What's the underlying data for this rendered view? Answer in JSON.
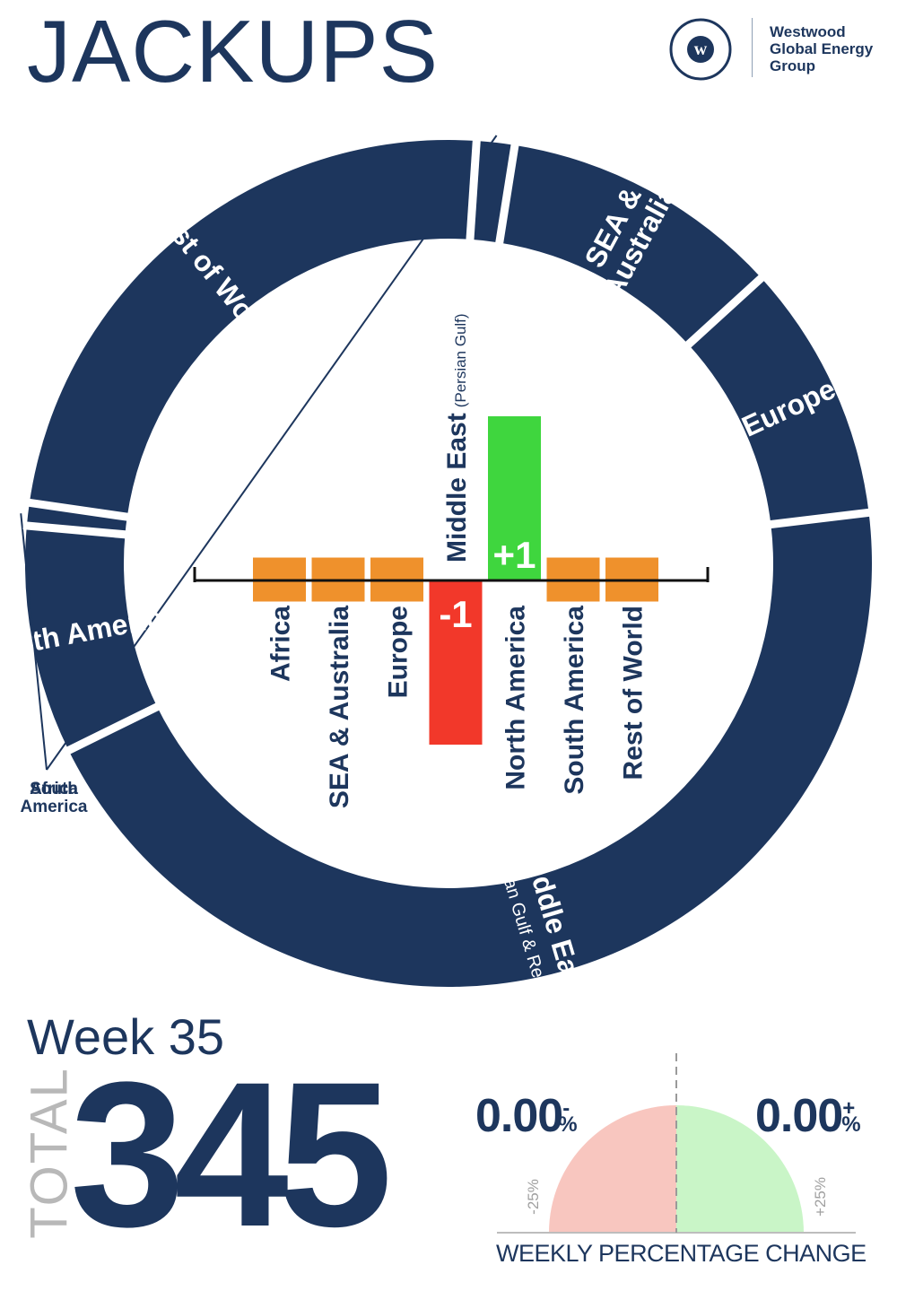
{
  "page": {
    "title": "JACKUPS",
    "brand": {
      "name_lines": [
        "Westwood",
        "Global Energy",
        "Group"
      ],
      "mark": "w",
      "color": "#1d365d"
    }
  },
  "colors": {
    "navy": "#1d365d",
    "neutral": "#ef912c",
    "increase": "#3fd63e",
    "decrease": "#f2382a",
    "gauge_negative": "#f8c6bf",
    "gauge_positive": "#c9f5c7"
  },
  "chart_data": [
    {
      "type": "pie",
      "style": "donut",
      "title": "",
      "slices": [
        {
          "label": "Africa",
          "value": 5
        },
        {
          "label": "SEA & Australia",
          "value": 37
        },
        {
          "label": "Europe",
          "value": 34
        },
        {
          "label": "Middle East",
          "sublabel": "(Persian Gulf & Red Sea)",
          "value": 154
        },
        {
          "label": "North America",
          "value": 30
        },
        {
          "label": "South America",
          "value": 3
        },
        {
          "label": "Rest of World",
          "value": 82
        }
      ]
    },
    {
      "type": "bar",
      "title": "",
      "categories": [
        "Africa",
        "SEA & Australia",
        "Europe",
        "Middle East (Persian Gulf)",
        "North America",
        "South America",
        "Rest of World"
      ],
      "category_labels": [
        {
          "main": "Africa",
          "sub": ""
        },
        {
          "main": "SEA & Australia",
          "sub": ""
        },
        {
          "main": "Europe",
          "sub": ""
        },
        {
          "main": "Middle East",
          "sub": "(Persian Gulf)"
        },
        {
          "main": "North America",
          "sub": ""
        },
        {
          "main": "South America",
          "sub": ""
        },
        {
          "main": "Rest of World",
          "sub": ""
        }
      ],
      "values": [
        0,
        0,
        0,
        -1,
        1,
        0,
        0
      ],
      "data_labels": [
        "",
        "",
        "",
        "-1",
        "+1",
        "",
        ""
      ]
    }
  ],
  "summary": {
    "week": "Week 35",
    "total_label": "TOTAL",
    "total_value": "345"
  },
  "gauge": {
    "negative": {
      "value": "0.00",
      "sign": "-",
      "unit": "%"
    },
    "positive": {
      "value": "0.00",
      "sign": "+",
      "unit": "%"
    },
    "min_label": "-25%",
    "max_label": "+25%",
    "range": [
      -25,
      25
    ],
    "value": 0,
    "axis_label": "WEEKLY PERCENTAGE CHANGE"
  }
}
